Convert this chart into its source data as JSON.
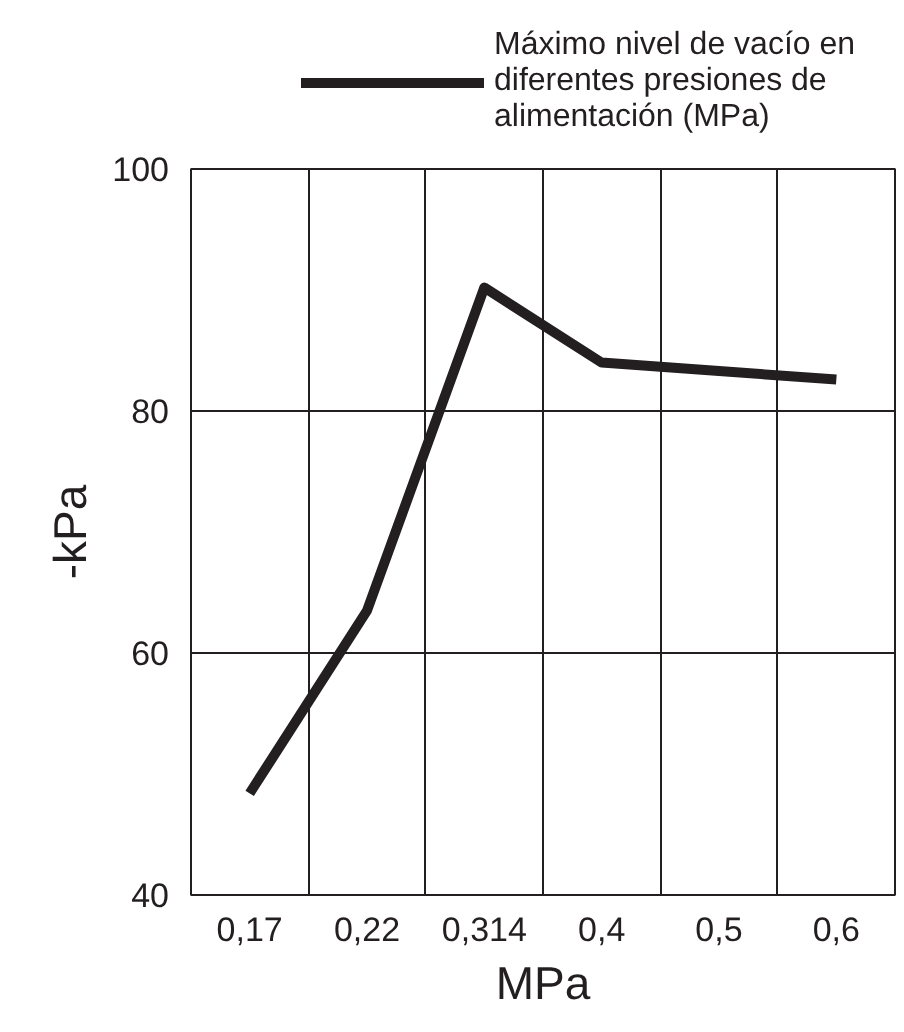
{
  "chart_data": {
    "type": "line",
    "xlabel": "MPa",
    "ylabel": "-kPa",
    "categories": [
      "0,17",
      "0,22",
      "0,314",
      "0,4",
      "0,5",
      "0,6"
    ],
    "series": [
      {
        "name": "Máximo nivel de vacío en diferentes presiones de alimentación (MPa)",
        "color": "#231f20",
        "values": [
          48.4,
          63.5,
          90.2,
          84.0,
          83.3,
          82.6
        ]
      }
    ],
    "ylim": [
      40,
      100
    ],
    "yticks": [
      40,
      60,
      80,
      100
    ],
    "grid": true,
    "legend": "top",
    "marker": "none",
    "line_style": "solid"
  }
}
